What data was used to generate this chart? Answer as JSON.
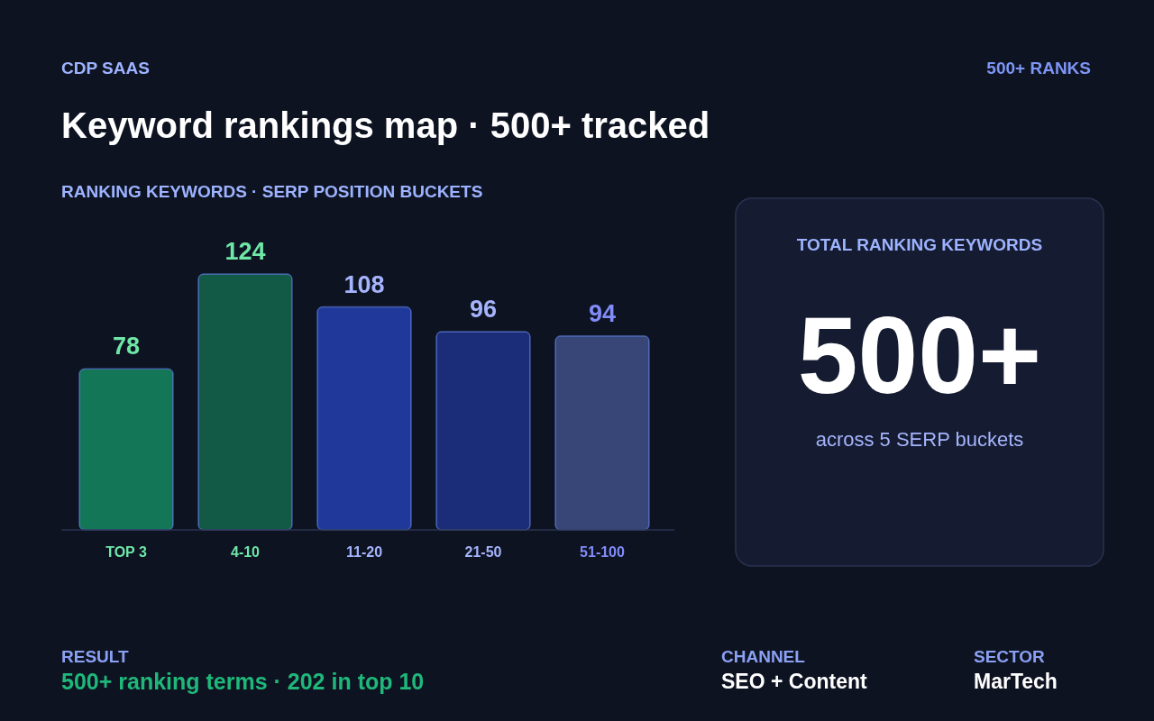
{
  "chart_data": {
    "type": "bar",
    "title": "Keyword rankings map · 500+ tracked",
    "subtitle": "RANKING KEYWORDS · SERP POSITION BUCKETS",
    "categories": [
      "TOP 3",
      "4-10",
      "11-20",
      "21-50",
      "51-100"
    ],
    "values": [
      78,
      124,
      108,
      96,
      94
    ],
    "colors": [
      "#137656",
      "#125a46",
      "#1f389a",
      "#1b2c78",
      "#374677"
    ],
    "data_labels": true,
    "annotations": [
      "CDP SAAS",
      "500+ RANKS",
      "TOTAL RANKING KEYWORDS",
      "500+",
      "across 5 SERP buckets",
      "RESULT",
      "500+ ranking terms · 202 in top 10",
      "CHANNEL",
      "SEO + Content",
      "SECTOR",
      "MarTech"
    ]
  }
}
